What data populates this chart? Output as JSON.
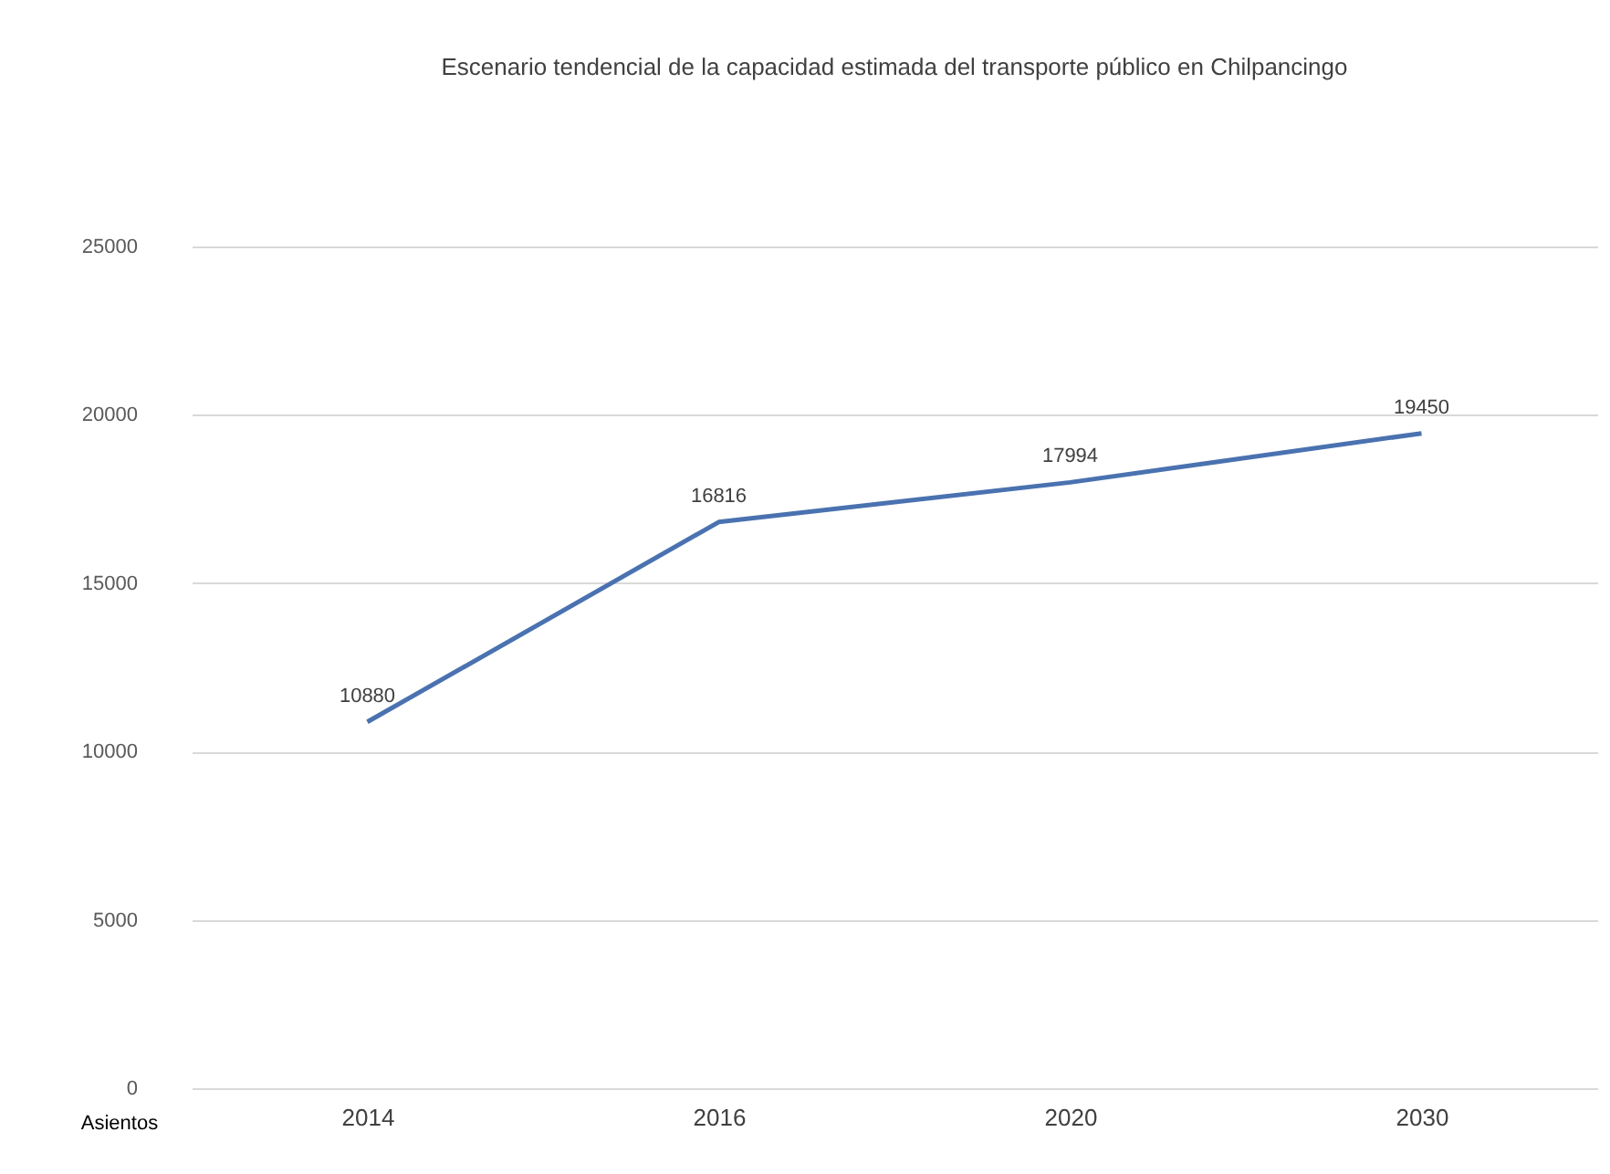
{
  "chart_data": {
    "type": "line",
    "title": "Escenario tendencial de la capacidad estimada del transporte público en Chilpancingo",
    "ylabel": "Asientos",
    "categories": [
      "2014",
      "2016",
      "2020",
      "2030"
    ],
    "series": [
      {
        "color": "#4a72b0",
        "values": [
          10880,
          16816,
          17994,
          19450
        ]
      }
    ],
    "ylim": [
      0,
      25000
    ],
    "yticks": [
      0,
      5000,
      10000,
      15000,
      20000,
      25000
    ],
    "grid": "y",
    "data_labels": true,
    "marker": "none",
    "line_style": "solid",
    "legend": false
  }
}
